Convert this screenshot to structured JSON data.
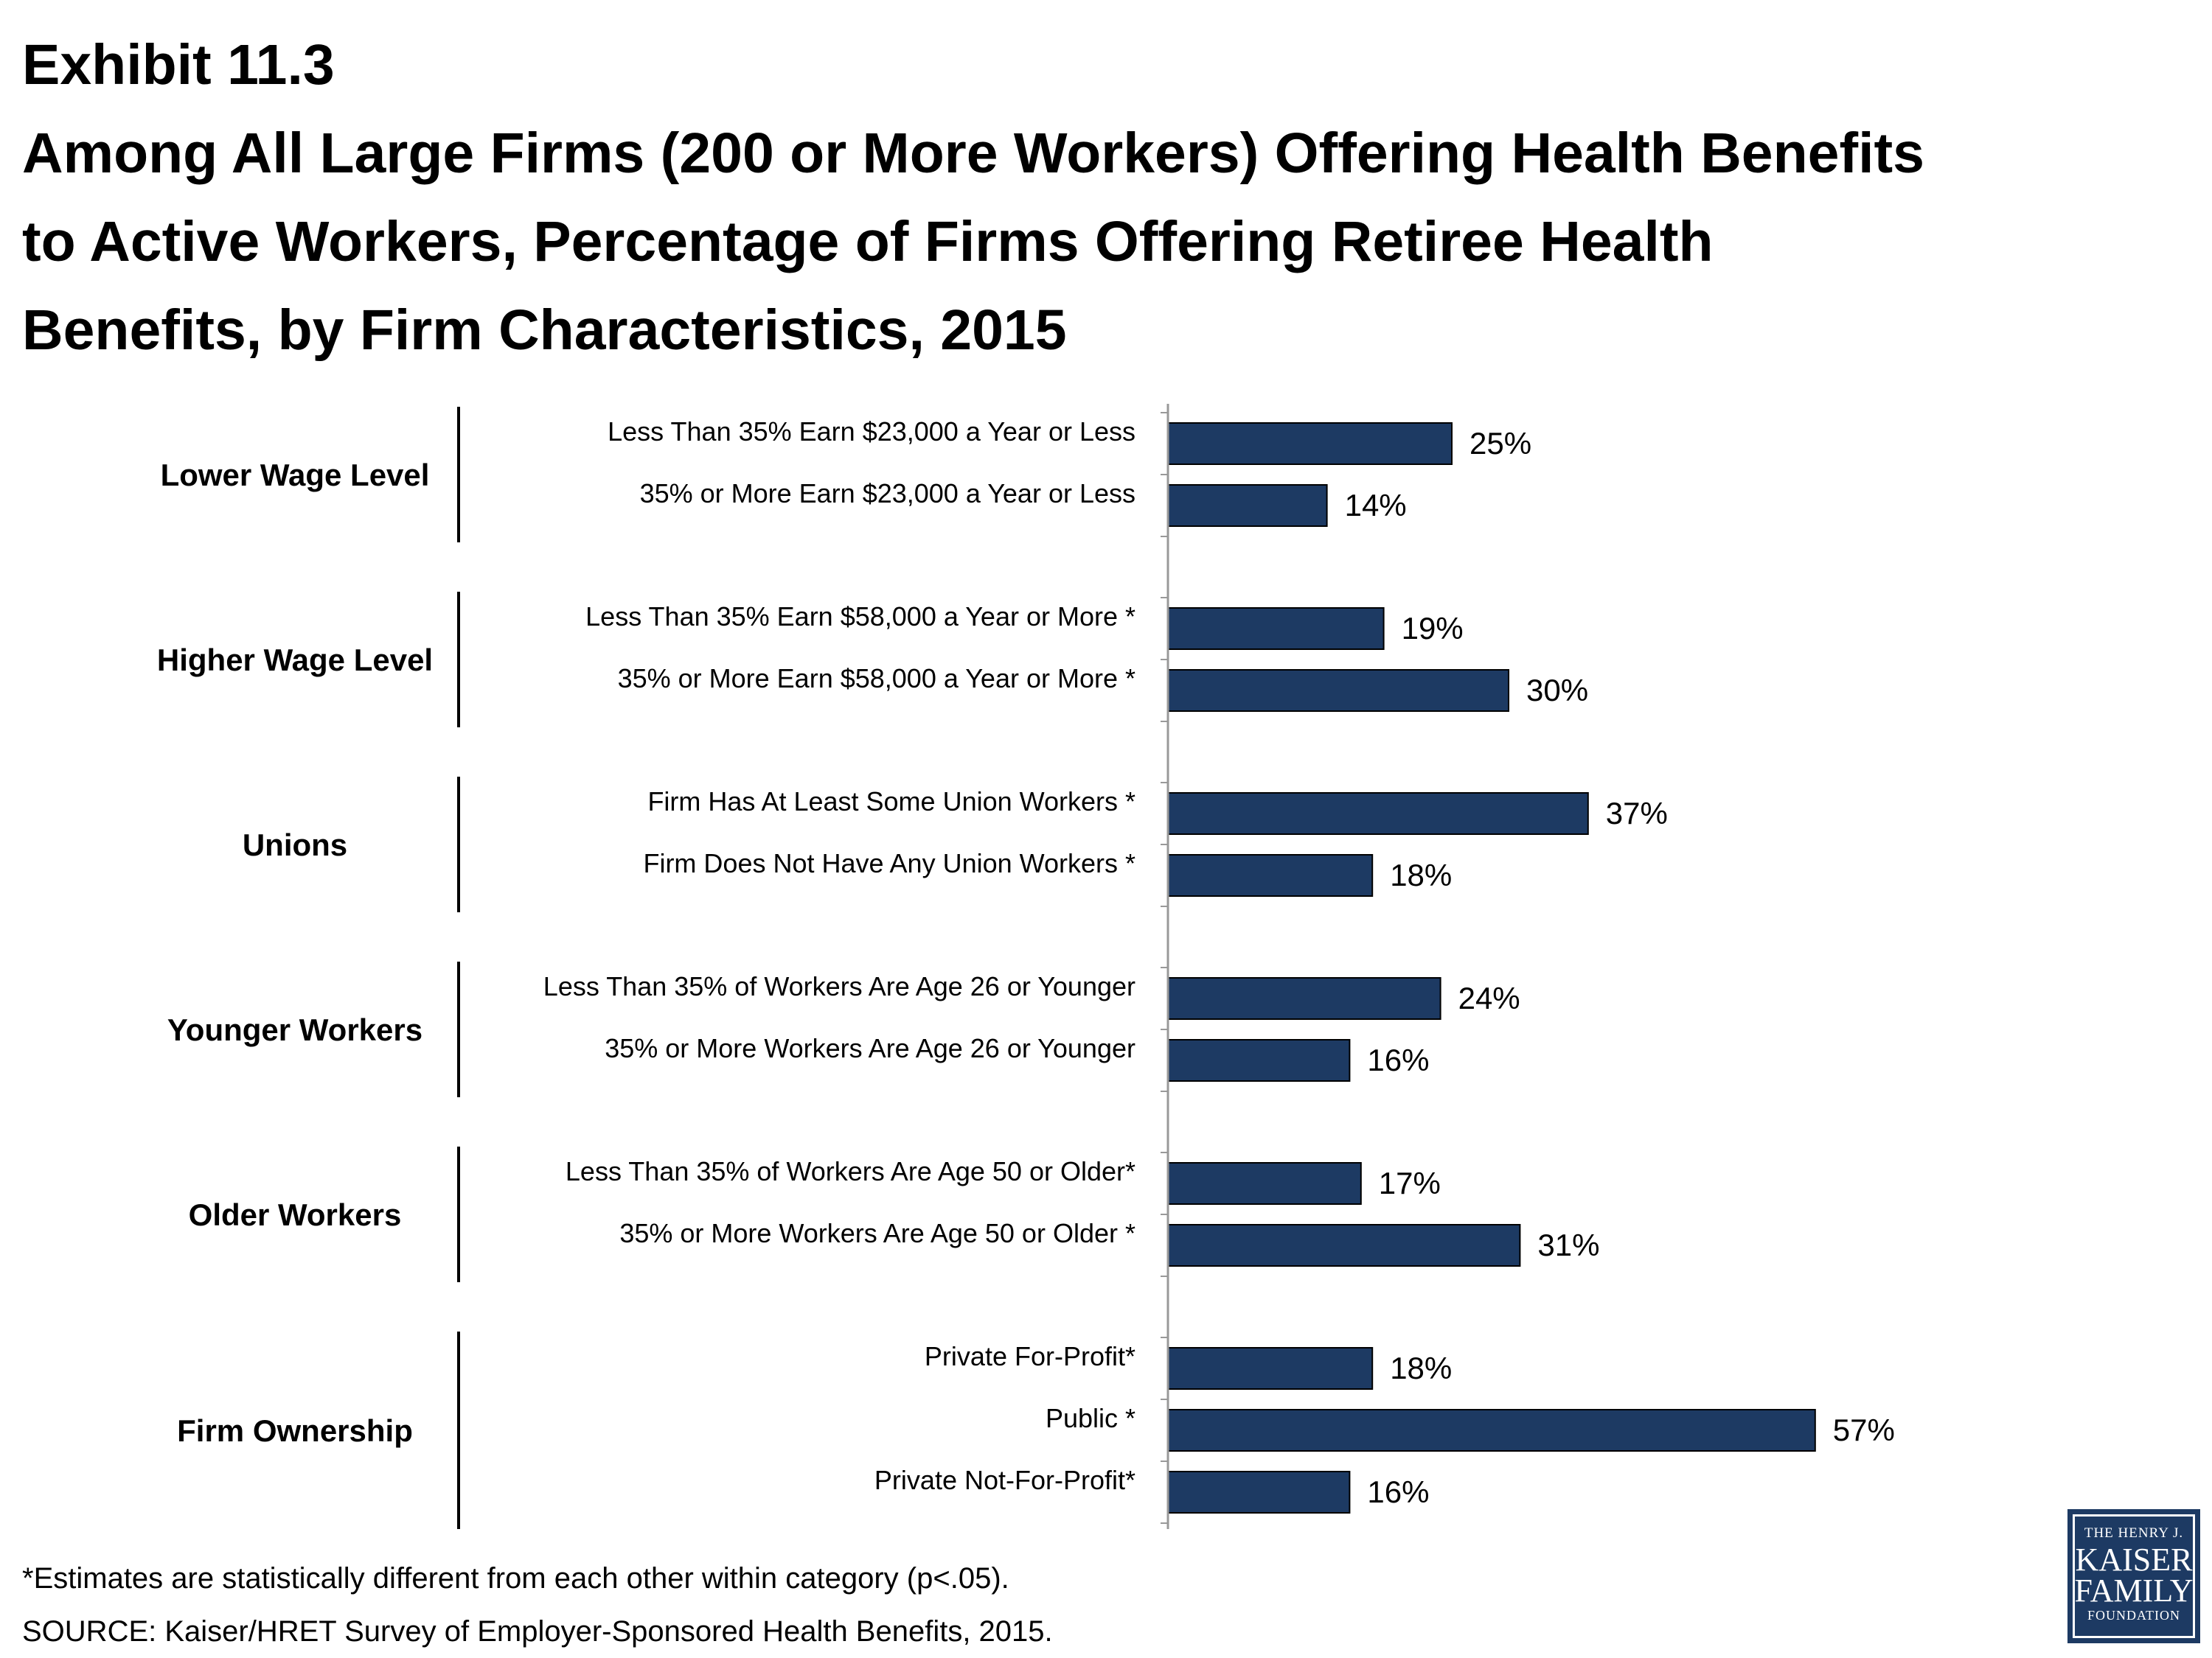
{
  "header": {
    "exhibit": "Exhibit 11.3",
    "title_lines": [
      "Among All Large Firms (200 or More Workers) Offering Health Benefits",
      "to Active Workers, Percentage of Firms Offering Retiree Health",
      "Benefits, by Firm Characteristics, 2015"
    ]
  },
  "chart_data": {
    "type": "bar",
    "orientation": "horizontal",
    "value_suffix": "%",
    "xlim": [
      0,
      60
    ],
    "grid": false,
    "legend": "none",
    "bar_color": "#1d3a63",
    "groups": [
      {
        "name": "Lower Wage Level",
        "items": [
          {
            "label": "Less Than 35% Earn $23,000 a Year or Less",
            "value": 25
          },
          {
            "label": "35% or More Earn $23,000 a Year or Less",
            "value": 14
          }
        ]
      },
      {
        "name": "Higher Wage Level",
        "items": [
          {
            "label": "Less Than 35% Earn $58,000 a Year or More *",
            "value": 19
          },
          {
            "label": "35% or More Earn $58,000 a Year or More *",
            "value": 30
          }
        ]
      },
      {
        "name": "Unions",
        "items": [
          {
            "label": "Firm Has At Least Some Union Workers *",
            "value": 37
          },
          {
            "label": "Firm Does Not Have Any Union Workers *",
            "value": 18
          }
        ]
      },
      {
        "name": "Younger Workers",
        "items": [
          {
            "label": "Less Than 35% of Workers Are Age 26 or Younger",
            "value": 24
          },
          {
            "label": "35% or More Workers Are Age 26 or Younger",
            "value": 16
          }
        ]
      },
      {
        "name": "Older Workers",
        "items": [
          {
            "label": "Less Than 35% of Workers Are Age 50 or Older*",
            "value": 17
          },
          {
            "label": "35% or More Workers Are Age 50 or Older *",
            "value": 31
          }
        ]
      },
      {
        "name": "Firm Ownership",
        "items": [
          {
            "label": "Private For-Profit*",
            "value": 18
          },
          {
            "label": "Public *",
            "value": 57
          },
          {
            "label": "Private Not-For-Profit*",
            "value": 16
          }
        ]
      }
    ]
  },
  "footnotes": {
    "significance": "*Estimates are statistically different from each other within category (p<.05).",
    "source": "SOURCE:  Kaiser/HRET Survey of Employer-Sponsored Health Benefits, 2015."
  },
  "logo": {
    "line1": "THE HENRY J.",
    "line2": "KAISER",
    "line3": "FAMILY",
    "line4": "FOUNDATION"
  }
}
